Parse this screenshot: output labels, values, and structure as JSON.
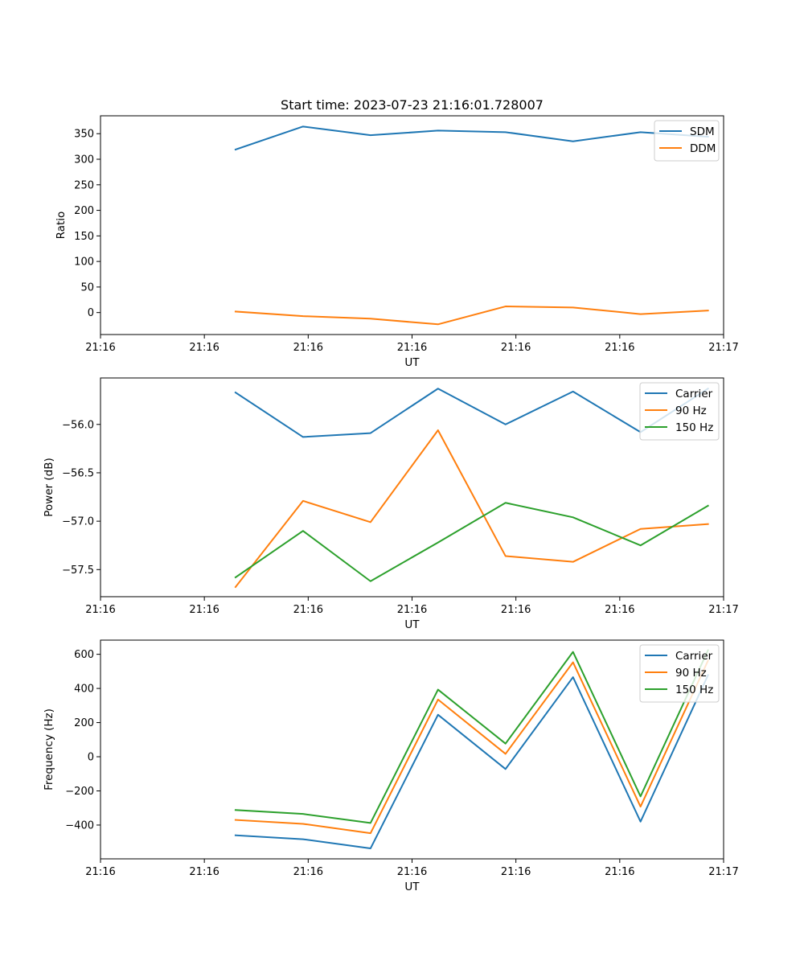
{
  "chart_data": [
    {
      "type": "line",
      "title": "Start time: 2023-07-23 21:16:01.728007",
      "xlabel": "UT",
      "ylabel": "Ratio",
      "x": [
        1.3,
        1.95,
        2.6,
        3.25,
        3.9,
        4.55,
        5.2,
        5.85
      ],
      "xlim": [
        0,
        6
      ],
      "xticks": [
        0,
        1,
        2,
        3,
        4,
        5,
        6
      ],
      "xtick_labels": [
        "21:16",
        "21:16",
        "21:16",
        "21:16",
        "21:16",
        "21:16",
        "21:17"
      ],
      "ylim": [
        -43,
        385
      ],
      "yticks": [
        0,
        50,
        100,
        150,
        200,
        250,
        300,
        350
      ],
      "ytick_labels": [
        "0",
        "50",
        "100",
        "150",
        "200",
        "250",
        "300",
        "350"
      ],
      "legend_position": "top-right",
      "series": [
        {
          "name": "SDM",
          "color": "#1f77b4",
          "values": [
            319,
            364,
            347,
            356,
            353,
            335,
            353,
            344
          ]
        },
        {
          "name": "DDM",
          "color": "#ff7f0e",
          "values": [
            2,
            -7,
            -12,
            -23,
            12,
            10,
            -3,
            4
          ]
        }
      ]
    },
    {
      "type": "line",
      "title": "",
      "xlabel": "UT",
      "ylabel": "Power (dB)",
      "x": [
        1.3,
        1.95,
        2.6,
        3.25,
        3.9,
        4.55,
        5.2,
        5.85
      ],
      "xlim": [
        0,
        6
      ],
      "xticks": [
        0,
        1,
        2,
        3,
        4,
        5,
        6
      ],
      "xtick_labels": [
        "21:16",
        "21:16",
        "21:16",
        "21:16",
        "21:16",
        "21:16",
        "21:17"
      ],
      "ylim": [
        -57.78,
        -55.52
      ],
      "yticks": [
        -57.5,
        -57.0,
        -56.5,
        -56.0
      ],
      "ytick_labels": [
        "−57.5",
        "−57.0",
        "−56.5",
        "−56.0"
      ],
      "legend_position": "top-right",
      "series": [
        {
          "name": "Carrier",
          "color": "#1f77b4",
          "values": [
            -55.67,
            -56.13,
            -56.09,
            -55.63,
            -56.0,
            -55.66,
            -56.08,
            -55.63
          ]
        },
        {
          "name": "90 Hz",
          "color": "#ff7f0e",
          "values": [
            -57.68,
            -56.79,
            -57.01,
            -56.06,
            -57.36,
            -57.42,
            -57.08,
            -57.03
          ]
        },
        {
          "name": "150 Hz",
          "color": "#2ca02c",
          "values": [
            -57.58,
            -57.1,
            -57.62,
            -57.22,
            -56.81,
            -56.96,
            -57.25,
            -56.84
          ]
        }
      ]
    },
    {
      "type": "line",
      "title": "",
      "xlabel": "UT",
      "ylabel": "Frequency (Hz)",
      "x": [
        1.3,
        1.95,
        2.6,
        3.25,
        3.9,
        4.55,
        5.2,
        5.85
      ],
      "xlim": [
        0,
        6
      ],
      "xticks": [
        0,
        1,
        2,
        3,
        4,
        5,
        6
      ],
      "xtick_labels": [
        "21:16",
        "21:16",
        "21:16",
        "21:16",
        "21:16",
        "21:16",
        "21:17"
      ],
      "ylim": [
        -598,
        683
      ],
      "yticks": [
        -400,
        -200,
        0,
        200,
        400,
        600
      ],
      "ytick_labels": [
        "−400",
        "−200",
        "0",
        "200",
        "400",
        "600"
      ],
      "legend_position": "top-right",
      "series": [
        {
          "name": "Carrier",
          "color": "#1f77b4",
          "values": [
            -460,
            -483,
            -537,
            246,
            -72,
            466,
            -380,
            478
          ]
        },
        {
          "name": "90 Hz",
          "color": "#ff7f0e",
          "values": [
            -370,
            -393,
            -448,
            335,
            17,
            553,
            -292,
            563
          ]
        },
        {
          "name": "150 Hz",
          "color": "#2ca02c",
          "values": [
            -312,
            -335,
            -388,
            393,
            77,
            614,
            -232,
            624
          ]
        }
      ]
    }
  ]
}
